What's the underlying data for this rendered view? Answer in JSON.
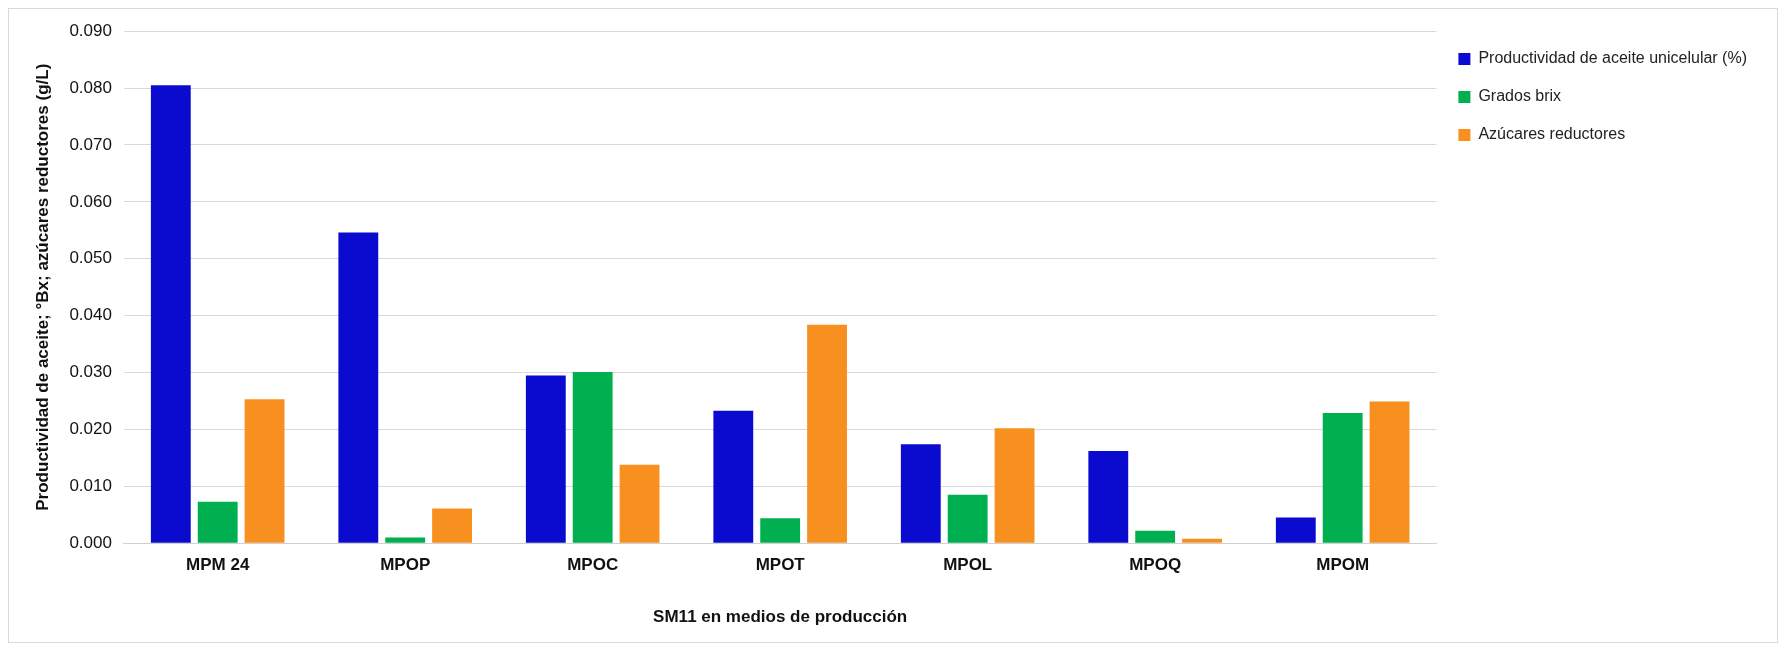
{
  "chart_data": {
    "type": "bar",
    "xlabel": "SM11 en medios de producción",
    "ylabel": "Productividad de aceite; °Bx; azúcares reductores (g/L)",
    "categories": [
      "MPM 24",
      "MPOP",
      "MPOC",
      "MPOT",
      "MPOL",
      "MPOQ",
      "MPOM"
    ],
    "series": [
      {
        "name": "Productividad de aceite unicelular (%)",
        "color": "#0b0bd0",
        "values": [
          0.0805,
          0.0546,
          0.0295,
          0.0233,
          0.0174,
          0.0162,
          0.0045
        ]
      },
      {
        "name": "Grados brix",
        "color": "#00b050",
        "values": [
          0.0073,
          0.001,
          0.0301,
          0.0044,
          0.0085,
          0.0022,
          0.0229
        ]
      },
      {
        "name": "Azúcares reductores",
        "color": "#f7901e",
        "values": [
          0.0253,
          0.0061,
          0.0138,
          0.0384,
          0.0202,
          0.0008,
          0.0249
        ]
      }
    ],
    "ylim": [
      0,
      0.09
    ],
    "yticks": [
      {
        "value": 0,
        "label": "0.000"
      },
      {
        "value": 0.01,
        "label": "0.010"
      },
      {
        "value": 0.02,
        "label": "0.020"
      },
      {
        "value": 0.03,
        "label": "0.030"
      },
      {
        "value": 0.04,
        "label": "0.040"
      },
      {
        "value": 0.05,
        "label": "0.050"
      },
      {
        "value": 0.06,
        "label": "0.060"
      },
      {
        "value": 0.07,
        "label": "0.070"
      },
      {
        "value": 0.08,
        "label": "0.080"
      },
      {
        "value": 0.09,
        "label": "0.090"
      }
    ],
    "grid": "y",
    "legend": "right"
  }
}
